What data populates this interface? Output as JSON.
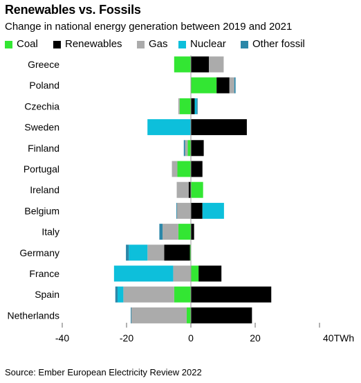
{
  "chart_data": {
    "type": "bar",
    "orientation": "horizontal",
    "stacked": true,
    "title": "Renewables vs. Fossils",
    "subtitle": "Change in national energy generation between 2019 and 2021",
    "categories": [
      "Greece",
      "Poland",
      "Czechia",
      "Sweden",
      "Finland",
      "Portugal",
      "Ireland",
      "Belgium",
      "Italy",
      "Germany",
      "France",
      "Spain",
      "Netherlands"
    ],
    "series": [
      {
        "name": "Coal",
        "color": "#33e633",
        "values": [
          -5.2,
          8.0,
          -3.5,
          0,
          -1.0,
          -4.2,
          3.8,
          0,
          -3.9,
          -0.3,
          2.4,
          -5.2,
          -1.3
        ]
      },
      {
        "name": "Renewables",
        "color": "#000000",
        "values": [
          5.6,
          4.0,
          1.2,
          17.4,
          4.0,
          3.6,
          -0.7,
          3.6,
          1.0,
          -8.0,
          7.1,
          25.0,
          19.0
        ]
      },
      {
        "name": "Gas",
        "color": "#ababab",
        "values": [
          4.6,
          1.5,
          -0.4,
          0,
          -0.8,
          -1.7,
          -3.7,
          -4.3,
          -4.9,
          -5.2,
          -5.5,
          -15.8,
          -17.2
        ]
      },
      {
        "name": "Nuclear",
        "color": "#0dbfdb",
        "values": [
          0,
          0,
          0.6,
          -13.5,
          0,
          0,
          0,
          6.7,
          0,
          -5.8,
          -18.4,
          -1.8,
          0
        ]
      },
      {
        "name": "Other fossil",
        "color": "#2b87a8",
        "values": [
          0,
          0.4,
          0.3,
          0,
          -0.4,
          0,
          0,
          -0.2,
          -1.0,
          -0.9,
          0,
          -0.7,
          -0.2
        ]
      }
    ],
    "xlim": [
      -40,
      40
    ],
    "xticks": [
      "-40",
      "-20",
      "0",
      "20",
      "40TWh"
    ],
    "legend_position": "top",
    "grid": false
  },
  "source": "Source: Ember European Electricity Review 2022"
}
